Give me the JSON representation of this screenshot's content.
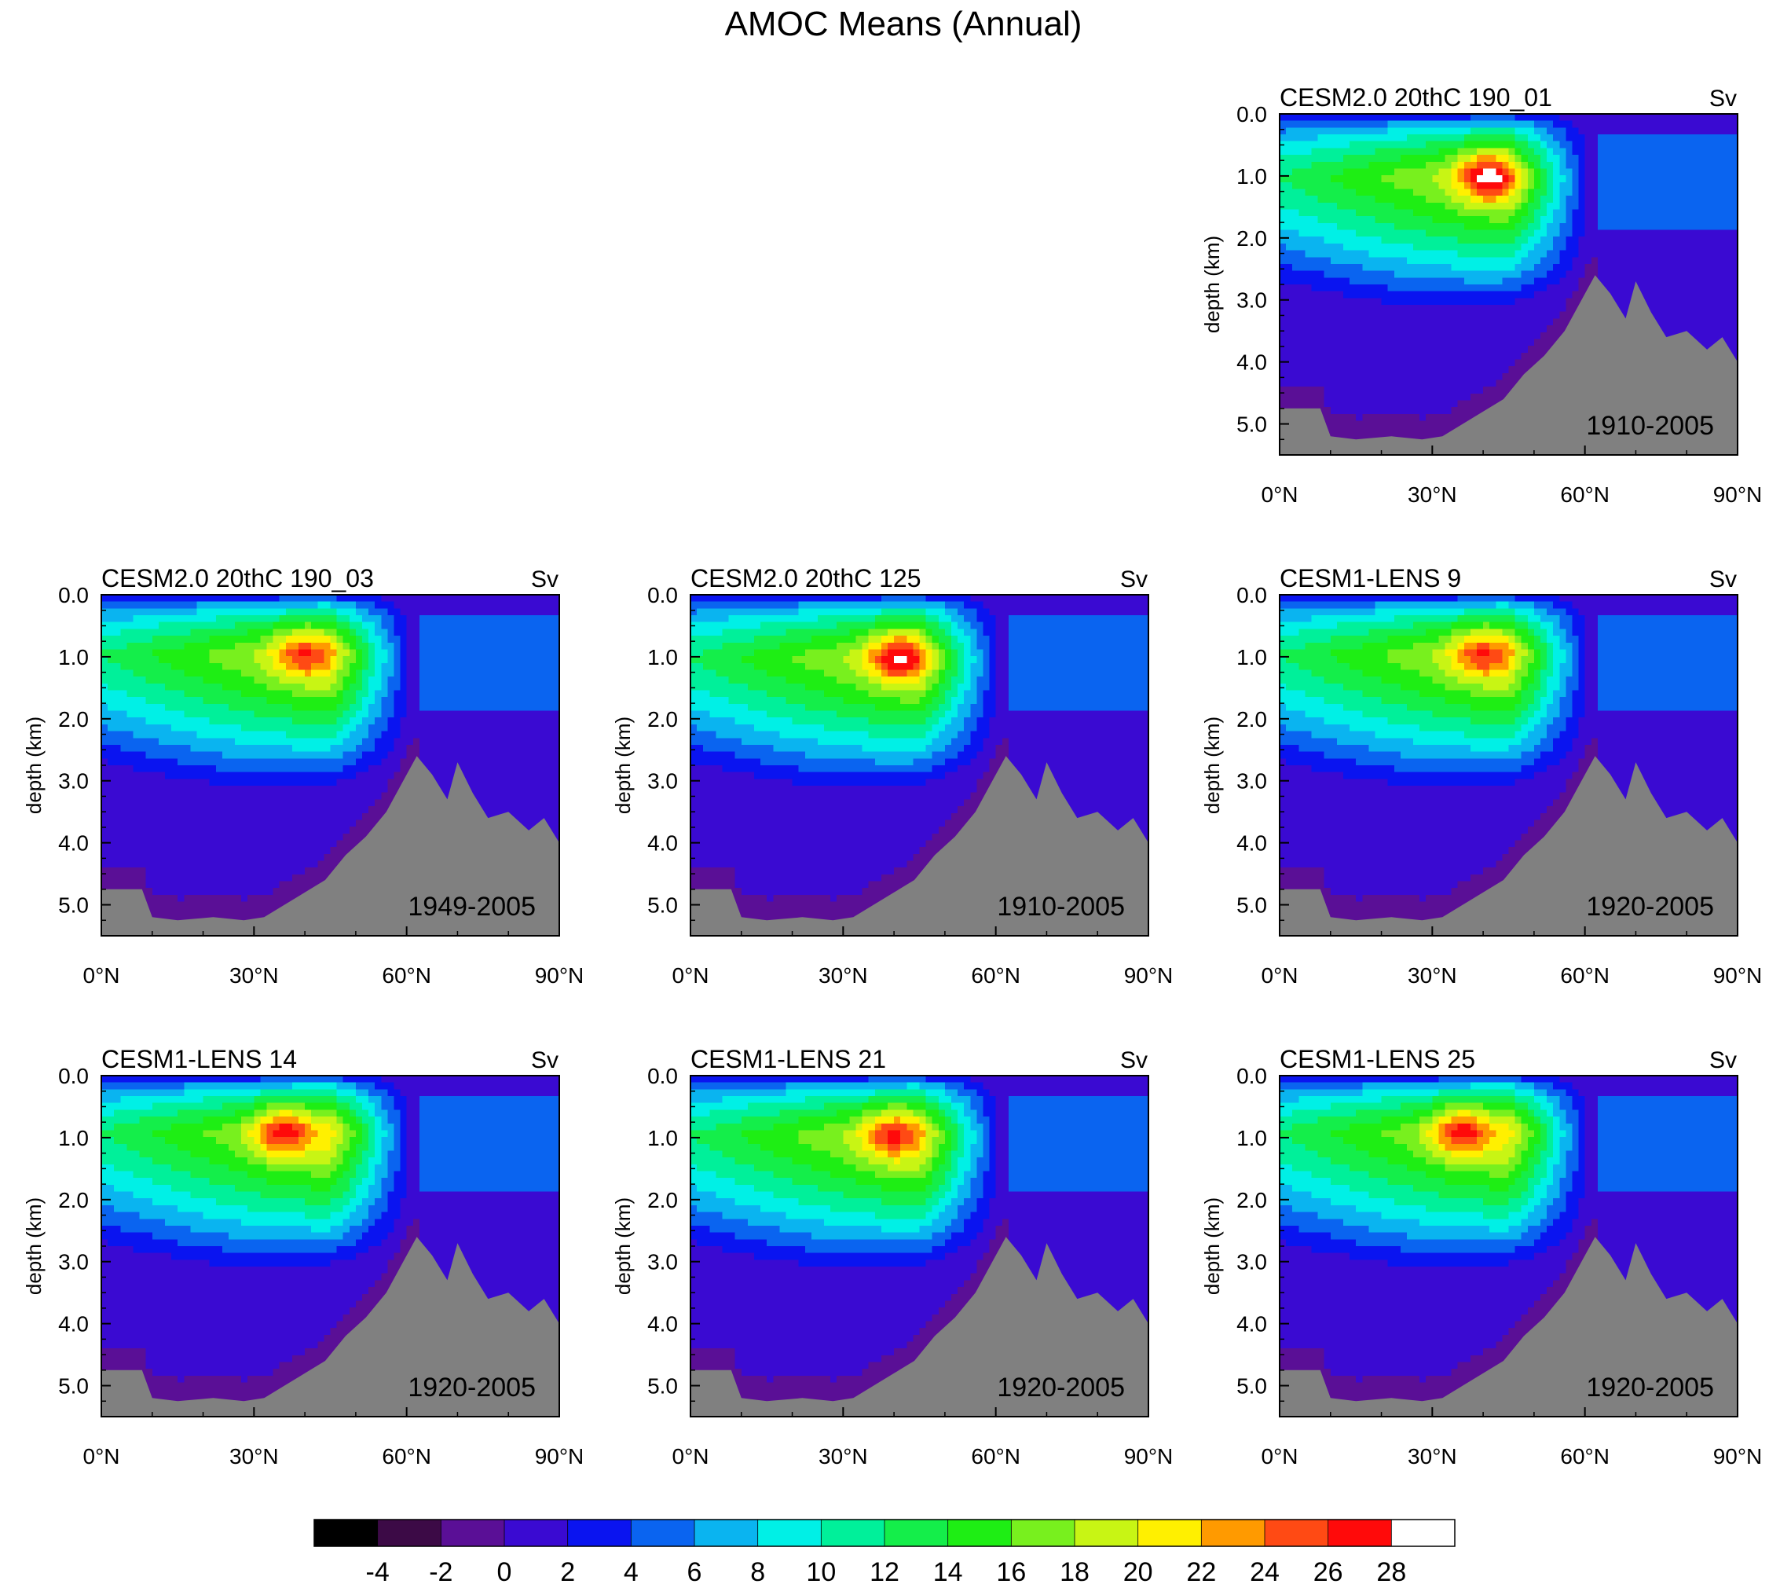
{
  "title": "AMOC Means (Annual)",
  "chart_data": {
    "type": "heatmap",
    "title": "AMOC Means (Annual)",
    "variable_units": "Sv",
    "x_axis": {
      "label": "",
      "range": [
        0,
        90
      ],
      "ticks": [
        0,
        30,
        60,
        90
      ],
      "tick_labels": [
        "0°N",
        "30°N",
        "60°N",
        "90°N"
      ]
    },
    "y_axis": {
      "label": "depth (km)",
      "range": [
        0,
        5.5
      ],
      "inverted": true,
      "ticks": [
        0,
        1,
        2,
        3,
        4,
        5
      ],
      "tick_labels": [
        "0.0",
        "1.0",
        "2.0",
        "3.0",
        "4.0",
        "5.0"
      ]
    },
    "colorbar": {
      "levels": [
        -5,
        -4,
        -3,
        -2,
        -1,
        0,
        1,
        2,
        3,
        4,
        5,
        6,
        7,
        8,
        9,
        10,
        11,
        12,
        13,
        14,
        15,
        16,
        17,
        18,
        19,
        20,
        21,
        22,
        23,
        24,
        25,
        26,
        27,
        28
      ],
      "label_values": [
        -4,
        -2,
        0,
        2,
        4,
        6,
        8,
        10,
        12,
        14,
        16,
        18,
        20,
        22,
        24,
        26,
        28
      ],
      "labels": [
        "-4",
        "-2",
        "0",
        "2",
        "4",
        "6",
        "8",
        "10",
        "12",
        "14",
        "16",
        "18",
        "20",
        "22",
        "24",
        "26",
        "28"
      ],
      "colors": [
        "#000000",
        "#3c0a46",
        "#5a0f96",
        "#3a0ad2",
        "#0a14f0",
        "#0a64f0",
        "#0ab4f0",
        "#00f0e6",
        "#00f09a",
        "#14ee4a",
        "#1eee14",
        "#78f01e",
        "#c8f514",
        "#fff000",
        "#ff9a00",
        "#ff4a14",
        "#ff0a0a",
        "#ffffff"
      ],
      "color_bounds": [
        -5,
        -4,
        -2,
        0,
        2,
        4,
        6,
        8,
        10,
        12,
        14,
        16,
        18,
        20,
        22,
        24,
        26,
        28
      ]
    },
    "land_color": "#808080",
    "bathymetry_max_depth_km": [
      [
        0,
        4.75
      ],
      [
        8,
        4.75
      ],
      [
        10,
        5.2
      ],
      [
        15,
        5.25
      ],
      [
        22,
        5.2
      ],
      [
        28,
        5.25
      ],
      [
        32,
        5.2
      ],
      [
        36,
        5.0
      ],
      [
        40,
        4.8
      ],
      [
        44,
        4.6
      ],
      [
        48,
        4.2
      ],
      [
        52,
        3.9
      ],
      [
        56,
        3.5
      ],
      [
        60,
        2.9
      ],
      [
        62,
        2.6
      ],
      [
        65,
        2.9
      ],
      [
        68,
        3.3
      ],
      [
        70,
        2.7
      ],
      [
        73,
        3.2
      ],
      [
        76,
        3.6
      ],
      [
        80,
        3.5
      ],
      [
        84,
        3.8
      ],
      [
        87,
        3.6
      ],
      [
        90,
        4.0
      ]
    ],
    "panels": [
      {
        "name": "CESM2.0 20thC 190_01",
        "units": "Sv",
        "period": "1910-2005",
        "max_sv": 29.5,
        "max_location": {
          "lat": 41,
          "depth_km": 1.0
        }
      },
      {
        "name": "CESM2.0 20thC 190_03",
        "units": "Sv",
        "period": "1949-2005",
        "max_sv": 26.5,
        "max_location": {
          "lat": 40,
          "depth_km": 0.95
        }
      },
      {
        "name": "CESM2.0 20thC 125",
        "units": "Sv",
        "period": "1910-2005",
        "max_sv": 28.8,
        "max_location": {
          "lat": 41,
          "depth_km": 1.0
        }
      },
      {
        "name": "CESM1-LENS 9",
        "units": "Sv",
        "period": "1920-2005",
        "max_sv": 26.5,
        "max_location": {
          "lat": 40,
          "depth_km": 0.95
        }
      },
      {
        "name": "CESM1-LENS 14",
        "units": "Sv",
        "period": "1920-2005",
        "max_sv": 27.5,
        "max_location": {
          "lat": 36,
          "depth_km": 0.9
        }
      },
      {
        "name": "CESM1-LENS 21",
        "units": "Sv",
        "period": "1920-2005",
        "max_sv": 26.8,
        "max_location": {
          "lat": 40,
          "depth_km": 0.95
        }
      },
      {
        "name": "CESM1-LENS 25",
        "units": "Sv",
        "period": "1920-2005",
        "max_sv": 27.4,
        "max_location": {
          "lat": 36,
          "depth_km": 0.9
        }
      }
    ]
  }
}
